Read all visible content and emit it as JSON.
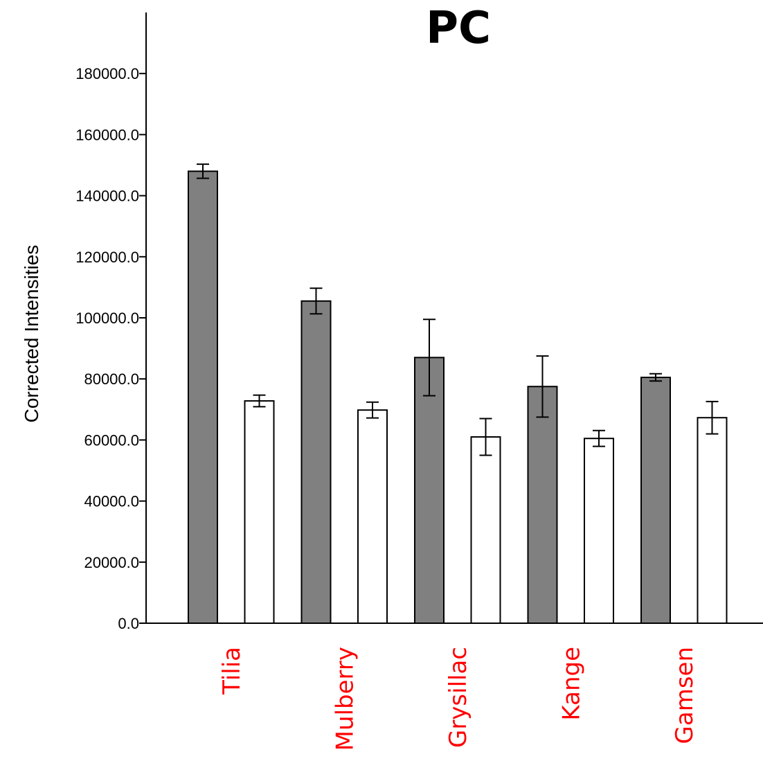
{
  "chart_data": {
    "type": "bar",
    "title": "PC",
    "xlabel": "",
    "ylabel": "Corrected Intensities",
    "ylim": [
      0,
      200000
    ],
    "yticks": [
      "0.0",
      "20000.0",
      "40000.0",
      "60000.0",
      "80000.0",
      "100000.0",
      "120000.0",
      "140000.0",
      "160000.0",
      "180000.0"
    ],
    "categories": [
      "Tilia",
      "Mulberry",
      "Grysillac",
      "Kange",
      "Gamsen"
    ],
    "category_color": "#ff0000",
    "series": [
      {
        "fill": "#808080",
        "values": [
          148000,
          105500,
          87000,
          77500,
          80500
        ],
        "errors": [
          2300,
          4200,
          12500,
          10000,
          1200
        ]
      },
      {
        "fill": "#ffffff",
        "values": [
          72800,
          69800,
          61000,
          60500,
          67300
        ],
        "errors": [
          1900,
          2600,
          6000,
          2600,
          5300
        ]
      }
    ],
    "grid": false,
    "legend": "none"
  }
}
